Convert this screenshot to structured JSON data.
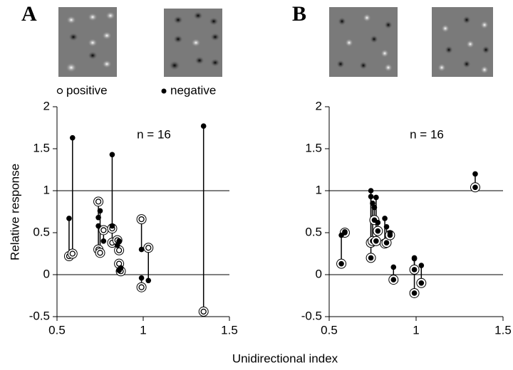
{
  "xlabel": "Unidirectional index",
  "chart_data": [
    {
      "type": "scatter",
      "panel": "A",
      "annotation": "n = 16",
      "ylabel": "Relative response",
      "xlim": [
        0.5,
        1.5
      ],
      "xticks": [
        0.5,
        1,
        1.5
      ],
      "ylim": [
        -0.5,
        2
      ],
      "yticks": [
        -0.5,
        0,
        0.5,
        1,
        1.5,
        2
      ],
      "hlines": [
        0,
        1
      ],
      "x": [
        0.57,
        0.59,
        0.74,
        0.74,
        0.75,
        0.77,
        0.82,
        0.82,
        0.85,
        0.86,
        0.86,
        0.87,
        0.99,
        0.99,
        1.03,
        1.35
      ],
      "series": [
        {
          "name": "positive",
          "color": "#000000",
          "marker": "open",
          "values": [
            0.22,
            0.25,
            0.87,
            0.3,
            0.26,
            0.53,
            0.38,
            0.55,
            0.41,
            0.29,
            0.13,
            0.04,
            0.66,
            -0.15,
            0.32,
            -0.44
          ]
        },
        {
          "name": "negative",
          "color": "#000000",
          "marker": "filled",
          "values": [
            0.67,
            1.63,
            0.68,
            0.58,
            0.76,
            0.4,
            1.43,
            0.58,
            0.35,
            0.4,
            0.05,
            0.08,
            0.3,
            -0.04,
            -0.07,
            1.77
          ]
        }
      ]
    },
    {
      "type": "scatter",
      "panel": "B",
      "annotation": "n = 16",
      "xlim": [
        0.5,
        1.5
      ],
      "xticks": [
        0.5,
        1,
        1.5
      ],
      "ylim": [
        -0.5,
        2
      ],
      "yticks": [
        -0.5,
        0,
        0.5,
        1,
        1.5,
        2
      ],
      "hlines": [
        0,
        1
      ],
      "x": [
        0.57,
        0.59,
        0.74,
        0.74,
        0.75,
        0.76,
        0.77,
        0.78,
        0.82,
        0.83,
        0.85,
        0.87,
        0.99,
        0.99,
        1.03,
        1.34
      ],
      "series": [
        {
          "color": "#000000",
          "marker": "ringed",
          "values": [
            0.13,
            0.5,
            0.38,
            0.2,
            0.4,
            0.65,
            0.4,
            0.52,
            0.37,
            0.38,
            0.47,
            -0.06,
            0.06,
            -0.22,
            -0.1,
            1.04
          ]
        },
        {
          "color": "#000000",
          "marker": "filled",
          "values": [
            0.47,
            0.51,
            1.0,
            0.93,
            0.85,
            0.8,
            0.92,
            0.62,
            0.67,
            0.57,
            0.5,
            0.09,
            0.2,
            0.19,
            0.11,
            1.2
          ]
        }
      ]
    }
  ]
}
